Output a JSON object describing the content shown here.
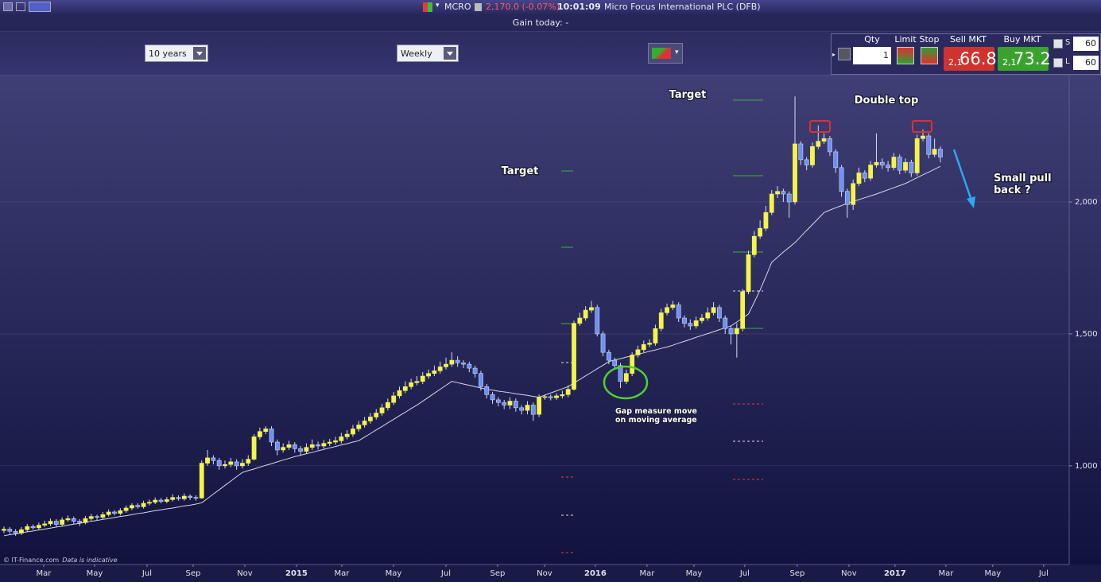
{
  "toolbar": {
    "symbol": "MCRO",
    "price": "2,170.0 (-0.07%)",
    "time": "10:01:09",
    "instrument": "Micro Focus International PLC (DFB)",
    "gain_today": "Gain today: -",
    "period": "10 years",
    "interval": "Weekly"
  },
  "trade_panel": {
    "qty_label": "Qty",
    "qty": "1",
    "limit_label": "Limit",
    "stop_label": "Stop",
    "sell_label": "Sell MKT",
    "sell_prefix": "2,1",
    "sell_price": "66.8",
    "buy_label": "Buy MKT",
    "buy_prefix": "2,1",
    "buy_price": "73.2",
    "s_label": "S",
    "s_value": "60",
    "l_label": "L",
    "l_value": "60"
  },
  "chart_data": {
    "type": "candlestick",
    "xlim": [
      -0.68,
      183.15
    ],
    "ylim": [
      626,
      2479
    ],
    "yticks": [
      {
        "value": 1000,
        "label": "1,000"
      },
      {
        "value": 1500,
        "label": "1,500"
      },
      {
        "value": 2000,
        "label": "2,000"
      }
    ],
    "xticks": [
      {
        "value": 6.83,
        "label": "Mar"
      },
      {
        "value": 15.58,
        "label": "May"
      },
      {
        "value": 24.6,
        "label": "Jul"
      },
      {
        "value": 32.53,
        "label": "Sep"
      },
      {
        "value": 41.41,
        "label": "Nov"
      },
      {
        "value": 50.29,
        "label": "2015"
      },
      {
        "value": 58.08,
        "label": "Mar"
      },
      {
        "value": 66.97,
        "label": "May"
      },
      {
        "value": 75.99,
        "label": "Jul"
      },
      {
        "value": 84.87,
        "label": "Sep"
      },
      {
        "value": 92.93,
        "label": "Nov"
      },
      {
        "value": 101.68,
        "label": "2016"
      },
      {
        "value": 110.56,
        "label": "Mar"
      },
      {
        "value": 118.63,
        "label": "May"
      },
      {
        "value": 127.37,
        "label": "Jul"
      },
      {
        "value": 136.39,
        "label": "Sep"
      },
      {
        "value": 145.28,
        "label": "Nov"
      },
      {
        "value": 153.2,
        "label": "2017"
      },
      {
        "value": 161.95,
        "label": "Mar"
      },
      {
        "value": 170.0,
        "label": "May"
      },
      {
        "value": 178.76,
        "label": "Jul"
      }
    ],
    "grid": true,
    "candles": {
      "up_color": "#f4f44a",
      "down_color": "#6f8ff2",
      "wick_color": "#d8dcf0",
      "open": [
        755,
        760,
        752,
        745,
        758,
        770,
        765,
        775,
        780,
        790,
        778,
        795,
        800,
        790,
        785,
        800,
        808,
        805,
        815,
        825,
        820,
        830,
        840,
        850,
        845,
        858,
        862,
        870,
        865,
        872,
        880,
        875,
        885,
        880,
        878,
        1010,
        1030,
        1020,
        1000,
        1005,
        1015,
        1000,
        1010,
        1025,
        1110,
        1130,
        1140,
        1090,
        1060,
        1070,
        1080,
        1065,
        1055,
        1070,
        1080,
        1075,
        1085,
        1090,
        1095,
        1110,
        1120,
        1140,
        1155,
        1170,
        1185,
        1200,
        1220,
        1240,
        1265,
        1285,
        1300,
        1315,
        1320,
        1340,
        1350,
        1360,
        1375,
        1385,
        1400,
        1390,
        1385,
        1370,
        1350,
        1300,
        1270,
        1250,
        1240,
        1230,
        1245,
        1220,
        1210,
        1230,
        1195,
        1260,
        1262,
        1258,
        1265,
        1270,
        1290,
        1540,
        1560,
        1590,
        1600,
        1500,
        1430,
        1400,
        1380,
        1320,
        1350,
        1420,
        1440,
        1460,
        1465,
        1520,
        1580,
        1600,
        1610,
        1560,
        1540,
        1530,
        1550,
        1560,
        1580,
        1600,
        1560,
        1520,
        1500,
        1520,
        1660,
        1800,
        1870,
        1900,
        1960,
        2030,
        2040,
        2030,
        2000,
        2220,
        2160,
        2140,
        2210,
        2230,
        2240,
        2190,
        2130,
        2040,
        1990,
        2070,
        2110,
        2090,
        2140,
        2150,
        2140,
        2130,
        2170,
        2120,
        2150,
        2110,
        2240,
        2250,
        2180,
        2200
      ],
      "high": [
        770,
        768,
        760,
        768,
        780,
        778,
        785,
        792,
        800,
        798,
        805,
        812,
        808,
        798,
        810,
        818,
        815,
        825,
        835,
        832,
        840,
        850,
        858,
        858,
        868,
        872,
        880,
        878,
        882,
        892,
        888,
        895,
        892,
        888,
        1020,
        1060,
        1040,
        1030,
        1020,
        1030,
        1025,
        1025,
        1040,
        1120,
        1145,
        1150,
        1150,
        1100,
        1085,
        1095,
        1090,
        1075,
        1085,
        1100,
        1092,
        1098,
        1102,
        1110,
        1125,
        1135,
        1155,
        1170,
        1185,
        1200,
        1215,
        1235,
        1255,
        1280,
        1300,
        1320,
        1330,
        1340,
        1355,
        1365,
        1380,
        1395,
        1410,
        1430,
        1415,
        1400,
        1395,
        1380,
        1360,
        1310,
        1280,
        1260,
        1250,
        1260,
        1255,
        1230,
        1245,
        1240,
        1270,
        1270,
        1270,
        1275,
        1285,
        1305,
        1550,
        1580,
        1605,
        1625,
        1610,
        1510,
        1440,
        1410,
        1390,
        1365,
        1430,
        1455,
        1475,
        1480,
        1535,
        1595,
        1615,
        1625,
        1620,
        1570,
        1555,
        1565,
        1575,
        1600,
        1620,
        1610,
        1570,
        1530,
        1540,
        1670,
        1815,
        1890,
        1930,
        1985,
        2045,
        2060,
        2050,
        2040,
        2400,
        2230,
        2170,
        2225,
        2290,
        2260,
        2250,
        2200,
        2140,
        2050,
        2085,
        2130,
        2120,
        2155,
        2260,
        2165,
        2155,
        2185,
        2180,
        2165,
        2160,
        2255,
        2275,
        2260,
        2240,
        2210
      ],
      "low": [
        745,
        742,
        735,
        738,
        750,
        758,
        758,
        768,
        772,
        770,
        770,
        788,
        780,
        772,
        778,
        792,
        795,
        798,
        808,
        812,
        812,
        822,
        832,
        838,
        838,
        850,
        855,
        858,
        858,
        865,
        868,
        868,
        870,
        868,
        875,
        1000,
        1005,
        985,
        990,
        995,
        985,
        990,
        1000,
        1020,
        1100,
        1120,
        1075,
        1040,
        1050,
        1060,
        1050,
        1040,
        1045,
        1060,
        1062,
        1065,
        1075,
        1080,
        1085,
        1100,
        1110,
        1130,
        1145,
        1160,
        1175,
        1190,
        1210,
        1230,
        1255,
        1275,
        1290,
        1305,
        1310,
        1330,
        1340,
        1350,
        1365,
        1375,
        1375,
        1370,
        1355,
        1335,
        1285,
        1255,
        1235,
        1225,
        1215,
        1215,
        1205,
        1195,
        1195,
        1170,
        1185,
        1250,
        1248,
        1250,
        1255,
        1260,
        1285,
        1530,
        1550,
        1580,
        1490,
        1415,
        1385,
        1365,
        1295,
        1310,
        1340,
        1410,
        1430,
        1450,
        1455,
        1510,
        1570,
        1590,
        1545,
        1525,
        1515,
        1520,
        1540,
        1550,
        1570,
        1545,
        1500,
        1460,
        1410,
        1510,
        1650,
        1790,
        1860,
        1890,
        1950,
        2015,
        2000,
        1940,
        1990,
        2140,
        2120,
        2130,
        2200,
        2220,
        2175,
        2110,
        2020,
        1940,
        1970,
        2060,
        2075,
        2080,
        2130,
        2125,
        2115,
        2120,
        2105,
        2110,
        2095,
        2100,
        2230,
        2165,
        2170,
        2150
      ],
      "close": [
        760,
        752,
        745,
        758,
        770,
        765,
        775,
        780,
        790,
        778,
        795,
        800,
        790,
        785,
        800,
        808,
        805,
        815,
        825,
        820,
        830,
        840,
        850,
        845,
        858,
        862,
        870,
        865,
        872,
        880,
        875,
        885,
        880,
        878,
        1010,
        1030,
        1020,
        1000,
        1005,
        1015,
        1000,
        1010,
        1025,
        1110,
        1130,
        1140,
        1090,
        1060,
        1070,
        1080,
        1065,
        1055,
        1070,
        1080,
        1075,
        1085,
        1090,
        1095,
        1110,
        1120,
        1140,
        1155,
        1170,
        1185,
        1200,
        1220,
        1240,
        1265,
        1285,
        1300,
        1315,
        1320,
        1340,
        1350,
        1360,
        1375,
        1385,
        1400,
        1390,
        1385,
        1370,
        1350,
        1300,
        1270,
        1250,
        1240,
        1230,
        1245,
        1220,
        1210,
        1230,
        1195,
        1260,
        1262,
        1258,
        1265,
        1270,
        1290,
        1540,
        1560,
        1590,
        1600,
        1500,
        1430,
        1400,
        1380,
        1320,
        1350,
        1420,
        1440,
        1460,
        1465,
        1520,
        1580,
        1600,
        1610,
        1560,
        1540,
        1530,
        1550,
        1560,
        1580,
        1600,
        1560,
        1520,
        1500,
        1520,
        1660,
        1800,
        1870,
        1900,
        1960,
        2030,
        2040,
        2030,
        2000,
        2220,
        2160,
        2140,
        2210,
        2230,
        2240,
        2190,
        2130,
        2040,
        1990,
        2070,
        2110,
        2090,
        2140,
        2150,
        2140,
        2130,
        2170,
        2120,
        2150,
        2110,
        2240,
        2250,
        2180,
        2200,
        2170
      ]
    },
    "moving_average": {
      "color": "#d4d7ea",
      "values": [
        735,
        739,
        742,
        746,
        750,
        753,
        757,
        760,
        764,
        768,
        771,
        775,
        779,
        782,
        786,
        790,
        793,
        797,
        800,
        804,
        808,
        811,
        815,
        819,
        822,
        826,
        830,
        833,
        837,
        840,
        844,
        848,
        851,
        855,
        860,
        876,
        893,
        909,
        926,
        942,
        959,
        975,
        982,
        988,
        995,
        1002,
        1008,
        1015,
        1022,
        1028,
        1035,
        1040,
        1046,
        1051,
        1057,
        1062,
        1068,
        1073,
        1079,
        1084,
        1090,
        1095,
        1109,
        1122,
        1136,
        1149,
        1163,
        1176,
        1190,
        1203,
        1217,
        1230,
        1245,
        1260,
        1275,
        1290,
        1305,
        1320,
        1315,
        1310,
        1305,
        1300,
        1295,
        1290,
        1287,
        1283,
        1280,
        1277,
        1273,
        1270,
        1267,
        1263,
        1260,
        1268,
        1276,
        1284,
        1292,
        1300,
        1314,
        1327,
        1341,
        1354,
        1368,
        1381,
        1395,
        1401,
        1406,
        1412,
        1417,
        1423,
        1428,
        1434,
        1439,
        1445,
        1450,
        1457,
        1465,
        1472,
        1479,
        1487,
        1494,
        1501,
        1508,
        1516,
        1523,
        1530,
        1545,
        1560,
        1575,
        1620,
        1666,
        1718,
        1771,
        1790,
        1810,
        1828,
        1846,
        1869,
        1892,
        1914,
        1937,
        1960,
        1969,
        1978,
        1986,
        1995,
        2002,
        2009,
        2016,
        2023,
        2030,
        2038,
        2046,
        2054,
        2062,
        2070,
        2081,
        2092,
        2103,
        2113,
        2124,
        2135
      ]
    },
    "annotations": [
      {
        "lines": [
          "Target"
        ]
      },
      {
        "lines": [
          "Target"
        ]
      },
      {
        "lines": [
          "Double top"
        ]
      },
      {
        "lines": [
          "Small pull",
          "back ?"
        ]
      },
      {
        "lines": [
          "Gap measure move",
          "on moving average"
        ]
      }
    ],
    "credit": "© IT-Finance.com",
    "credit_note": "Data is indicative"
  }
}
